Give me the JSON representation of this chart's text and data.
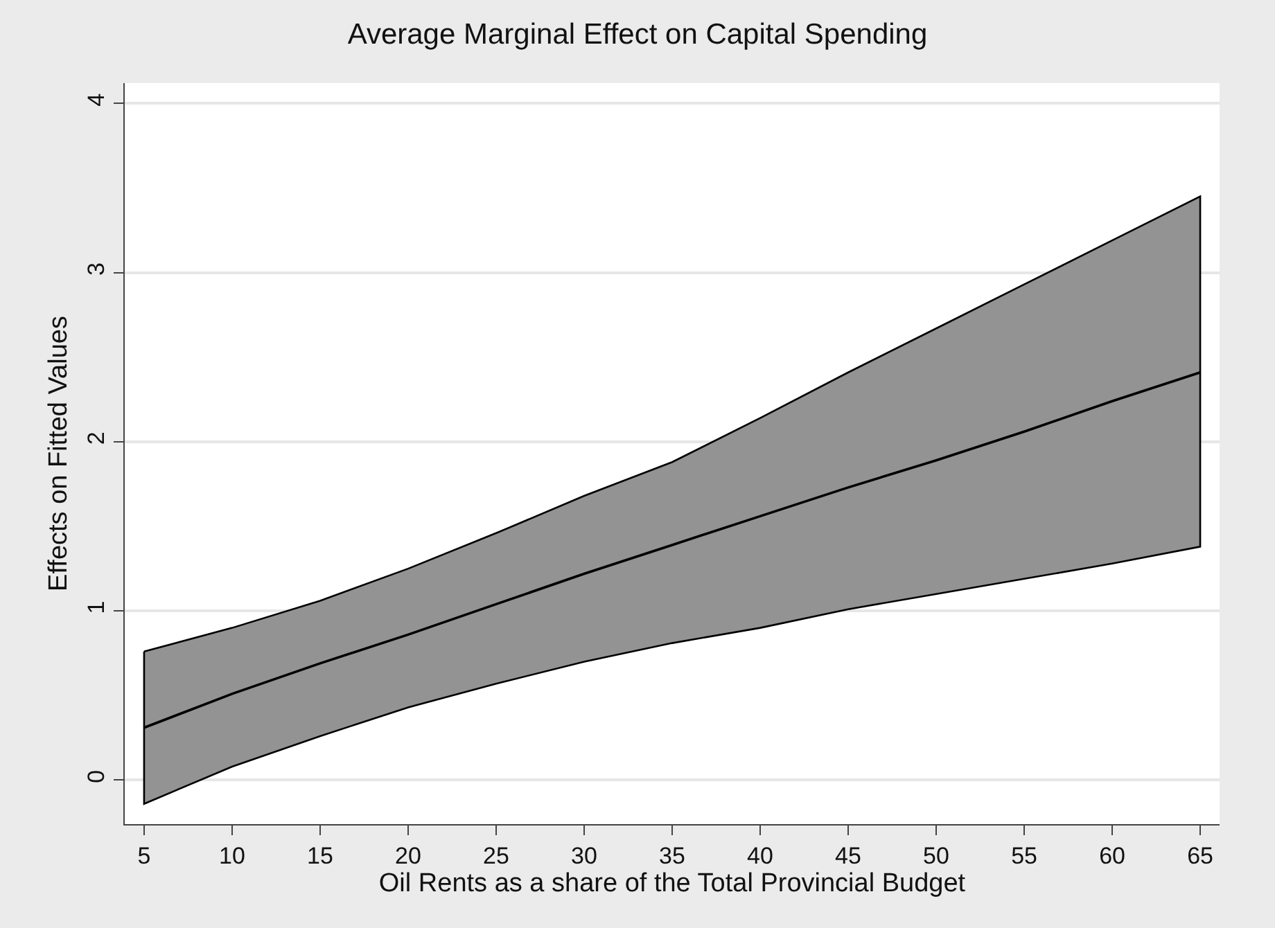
{
  "chart_data": {
    "type": "line",
    "title": "Average Marginal Effect on Capital Spending",
    "xlabel": "Oil Rents as a share of the Total Provincial Budget",
    "ylabel": "Effects on Fitted Values",
    "x": [
      5,
      10,
      15,
      20,
      25,
      30,
      35,
      40,
      45,
      50,
      55,
      60,
      65
    ],
    "series": [
      {
        "color": "#000000",
        "values": [
          0.31,
          0.51,
          0.69,
          0.86,
          1.04,
          1.22,
          1.39,
          1.56,
          1.73,
          1.89,
          2.06,
          2.24,
          2.41
        ],
        "lower": [
          -0.14,
          0.08,
          0.26,
          0.43,
          0.57,
          0.7,
          0.81,
          0.9,
          1.01,
          1.1,
          1.19,
          1.28,
          1.38
        ],
        "upper": [
          0.76,
          0.9,
          1.06,
          1.25,
          1.46,
          1.68,
          1.88,
          2.14,
          2.41,
          2.67,
          2.93,
          3.19,
          3.45
        ]
      }
    ],
    "xlim": [
      3.9,
      66.1
    ],
    "xticks": [
      5,
      10,
      15,
      20,
      25,
      30,
      35,
      40,
      45,
      50,
      55,
      60,
      65
    ],
    "ylim": [
      -0.26,
      4.12
    ],
    "yticks": [
      0,
      1,
      2,
      3,
      4
    ],
    "grid": "y",
    "marker": "none",
    "line_style": "solid"
  }
}
